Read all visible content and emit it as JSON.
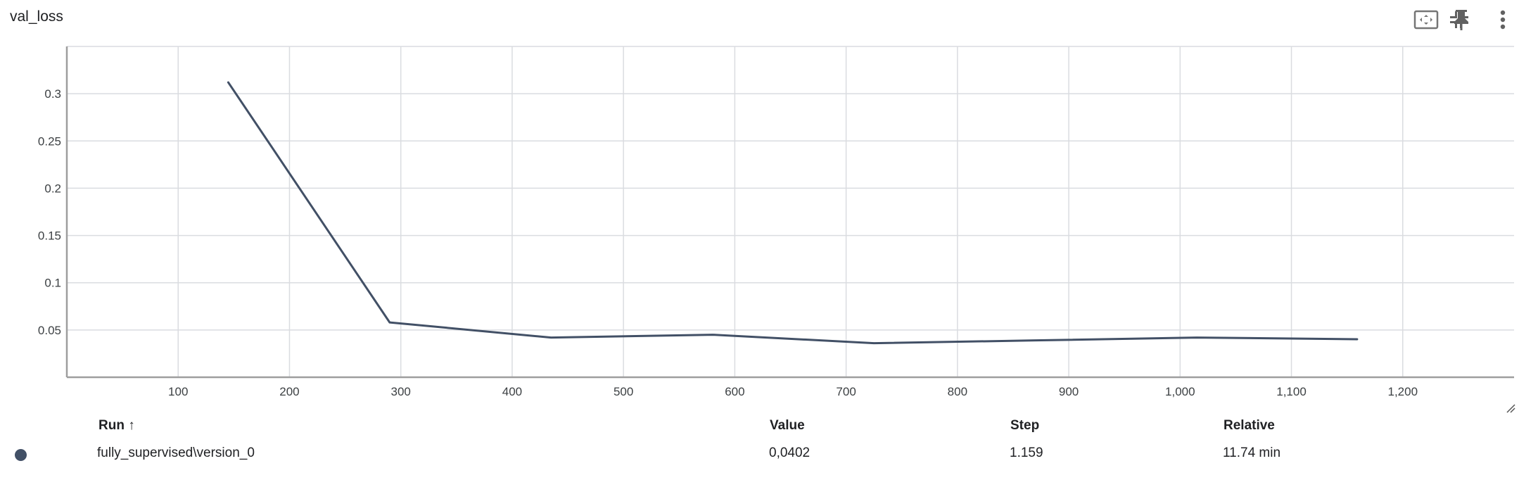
{
  "card": {
    "title": "val_loss"
  },
  "toolbar": {
    "icons": [
      "fit-domain-icon",
      "pin-icon",
      "collapse-icon",
      "more-vert-icon"
    ]
  },
  "chart_data": {
    "type": "line",
    "title": "val_loss",
    "xlabel": "",
    "ylabel": "",
    "xlim": [
      0,
      1300
    ],
    "ylim": [
      0,
      0.35
    ],
    "grid": true,
    "x_ticks": [
      100,
      200,
      300,
      400,
      500,
      600,
      700,
      800,
      900,
      1000,
      1100,
      1200
    ],
    "x_tick_labels": [
      "100",
      "200",
      "300",
      "400",
      "500",
      "600",
      "700",
      "800",
      "900",
      "1,000",
      "1,100",
      "1,200"
    ],
    "y_ticks": [
      0.05,
      0.1,
      0.15,
      0.2,
      0.25,
      0.3
    ],
    "y_tick_labels": [
      "0.05",
      "0.1",
      "0.15",
      "0.2",
      "0.25",
      "0.3"
    ],
    "series": [
      {
        "color": "#425066",
        "x": [
          145,
          290,
          435,
          580,
          725,
          870,
          1015,
          1159
        ],
        "y": [
          0.312,
          0.058,
          0.042,
          0.045,
          0.036,
          0.039,
          0.042,
          0.0402
        ]
      }
    ]
  },
  "table": {
    "headers": {
      "run": "Run ↑",
      "value": "Value",
      "step": "Step",
      "relative": "Relative"
    },
    "rows": [
      {
        "color": "#425066",
        "run": "fully_supervised\\version_0",
        "value": "0,0402",
        "step": "1.159",
        "relative": "11.74 min"
      }
    ]
  }
}
